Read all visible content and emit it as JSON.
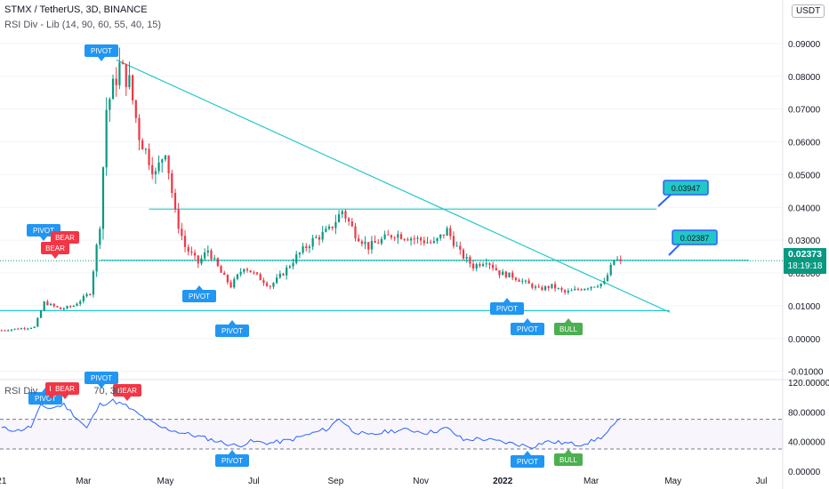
{
  "header": {
    "symbol_line": "STMX / TetherUS, 3D, BINANCE",
    "indicator_line": "RSI Div - Lib (14, 90, 60, 55, 40, 15)",
    "currency_button": "USDT"
  },
  "rsi_pane": {
    "title_prefix": "RSI Div",
    "title_suffix": "70, 30",
    "axis_labels": [
      "120.00000",
      "80.00000",
      "40.00000",
      "0.00000"
    ]
  },
  "last_price": {
    "price": "0.02373",
    "countdown": "18:19:18"
  },
  "colors": {
    "up": "#089981",
    "down": "#f23645",
    "trendline": "#22c7c7",
    "pivot": "#2196f3",
    "bear": "#f23645",
    "bull": "#4caf50",
    "rsi_line": "#2962ff"
  },
  "callouts": [
    {
      "label": "0.03947",
      "value": 0.03947
    },
    {
      "label": "0.02387",
      "value": 0.02387
    }
  ],
  "markers": {
    "main": [
      {
        "text": "PIVOT",
        "type": "pivot",
        "date_index": 34
      },
      {
        "text": "PIVOT",
        "type": "pivot",
        "date_index": 12
      },
      {
        "text": "BEAR",
        "type": "bear",
        "date_index": 16
      },
      {
        "text": "BEAR",
        "type": "bear",
        "date_index": 15
      },
      {
        "text": "PIVOT",
        "type": "pivot",
        "date_index": 60
      },
      {
        "text": "PIVOT",
        "type": "pivot",
        "date_index": 70
      },
      {
        "text": "PIVOT",
        "type": "pivot",
        "date_index": 154
      },
      {
        "text": "PIVOT",
        "type": "pivot",
        "date_index": 162
      },
      {
        "text": "BULL",
        "type": "bull",
        "date_index": 176
      }
    ],
    "rsi": [
      {
        "text": "PIVOT",
        "type": "pivot",
        "date_index": 12
      },
      {
        "text": "B",
        "type": "bear",
        "date_index": 15
      },
      {
        "text": "BEAR",
        "type": "bear",
        "date_index": 19
      },
      {
        "text": "PIVOT",
        "type": "pivot",
        "date_index": 30
      },
      {
        "text": "BEAR",
        "type": "bear",
        "date_index": 38
      },
      {
        "text": "PIVOT",
        "type": "pivot",
        "date_index": 70
      },
      {
        "text": "PIVOT",
        "type": "pivot",
        "date_index": 162
      },
      {
        "text": "BULL",
        "type": "bull",
        "date_index": 176
      }
    ]
  },
  "chart_data": {
    "type": "candlestick",
    "title": "STMX / TetherUS, 3D, BINANCE",
    "ylim": [
      -0.012,
      0.1
    ],
    "y_ticks": [
      "0.09000",
      "0.08000",
      "0.07000",
      "0.06000",
      "0.05000",
      "0.04000",
      "0.03000",
      "0.02000",
      "0.01000",
      "0.00000",
      "-0.01000"
    ],
    "y_tick_values": [
      0.09,
      0.08,
      0.07,
      0.06,
      0.05,
      0.04,
      0.03,
      0.02,
      0.01,
      0.0,
      -0.01
    ],
    "x_ticks": [
      {
        "label": "21",
        "index": 0
      },
      {
        "label": "Mar",
        "index": 25
      },
      {
        "label": "May",
        "index": 50
      },
      {
        "label": "Jul",
        "index": 77
      },
      {
        "label": "Sep",
        "index": 102
      },
      {
        "label": "Nov",
        "index": 128
      },
      {
        "label": "2022",
        "index": 153
      },
      {
        "label": "Mar",
        "index": 180
      },
      {
        "label": "May",
        "index": 205
      },
      {
        "label": "Jul",
        "index": 232
      }
    ],
    "anchors": [
      [
        0,
        0.0025
      ],
      [
        10,
        0.0035
      ],
      [
        13,
        0.011
      ],
      [
        18,
        0.009
      ],
      [
        22,
        0.01
      ],
      [
        27,
        0.014
      ],
      [
        30,
        0.035
      ],
      [
        32,
        0.07
      ],
      [
        36,
        0.083
      ],
      [
        39,
        0.078
      ],
      [
        42,
        0.062
      ],
      [
        47,
        0.05
      ],
      [
        50,
        0.058
      ],
      [
        53,
        0.038
      ],
      [
        56,
        0.028
      ],
      [
        60,
        0.023
      ],
      [
        63,
        0.027
      ],
      [
        67,
        0.02
      ],
      [
        70,
        0.016
      ],
      [
        74,
        0.022
      ],
      [
        78,
        0.019
      ],
      [
        82,
        0.016
      ],
      [
        86,
        0.02
      ],
      [
        90,
        0.025
      ],
      [
        95,
        0.03
      ],
      [
        100,
        0.033
      ],
      [
        104,
        0.039
      ],
      [
        108,
        0.032
      ],
      [
        112,
        0.028
      ],
      [
        116,
        0.03
      ],
      [
        120,
        0.032
      ],
      [
        124,
        0.031
      ],
      [
        128,
        0.03
      ],
      [
        132,
        0.029
      ],
      [
        136,
        0.033
      ],
      [
        140,
        0.026
      ],
      [
        144,
        0.022
      ],
      [
        148,
        0.024
      ],
      [
        152,
        0.02
      ],
      [
        156,
        0.019
      ],
      [
        160,
        0.017
      ],
      [
        164,
        0.015
      ],
      [
        168,
        0.016
      ],
      [
        172,
        0.014
      ],
      [
        176,
        0.015
      ],
      [
        180,
        0.016
      ],
      [
        184,
        0.017
      ],
      [
        187,
        0.024
      ],
      [
        189,
        0.02373
      ]
    ],
    "horizontal_lines": [
      0.03947,
      0.02387,
      0.0085
    ],
    "trendlines": [
      {
        "from": [
          35,
          0.085
        ],
        "to": [
          204,
          0.008
        ]
      }
    ],
    "rsi": {
      "ylim": [
        0,
        120
      ],
      "levels": [
        70,
        30
      ],
      "anchors": [
        [
          0,
          58
        ],
        [
          5,
          55
        ],
        [
          9,
          60
        ],
        [
          12,
          88
        ],
        [
          15,
          85
        ],
        [
          19,
          90
        ],
        [
          23,
          72
        ],
        [
          26,
          58
        ],
        [
          30,
          90
        ],
        [
          34,
          95
        ],
        [
          38,
          88
        ],
        [
          42,
          76
        ],
        [
          48,
          60
        ],
        [
          55,
          52
        ],
        [
          62,
          45
        ],
        [
          68,
          38
        ],
        [
          72,
          34
        ],
        [
          76,
          40
        ],
        [
          82,
          38
        ],
        [
          88,
          42
        ],
        [
          94,
          50
        ],
        [
          100,
          58
        ],
        [
          103,
          72
        ],
        [
          107,
          55
        ],
        [
          112,
          48
        ],
        [
          118,
          54
        ],
        [
          124,
          56
        ],
        [
          130,
          52
        ],
        [
          136,
          58
        ],
        [
          141,
          42
        ],
        [
          146,
          44
        ],
        [
          152,
          40
        ],
        [
          158,
          36
        ],
        [
          162,
          33
        ],
        [
          166,
          40
        ],
        [
          172,
          38
        ],
        [
          176,
          36
        ],
        [
          180,
          40
        ],
        [
          184,
          48
        ],
        [
          187,
          62
        ],
        [
          189,
          70
        ]
      ]
    }
  }
}
